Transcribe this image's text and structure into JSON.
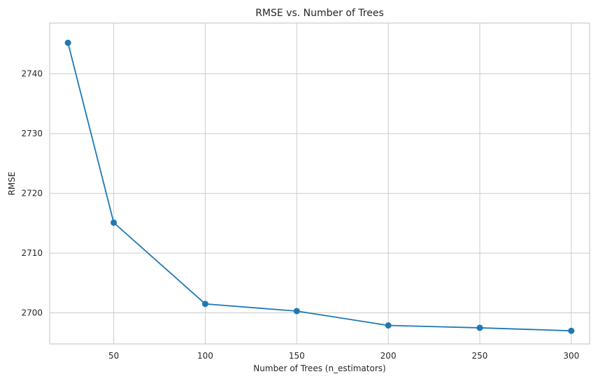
{
  "chart_data": {
    "type": "line",
    "title": "RMSE vs. Number of Trees",
    "xlabel": "Number of Trees (n_estimators)",
    "ylabel": "RMSE",
    "xlim": [
      15,
      310
    ],
    "ylim": [
      2694.8,
      2748.5
    ],
    "xticks": [
      50,
      100,
      150,
      200,
      250,
      300
    ],
    "yticks": [
      2700,
      2710,
      2720,
      2730,
      2740
    ],
    "grid": true,
    "series": [
      {
        "x": [
          25,
          50,
          100,
          150,
          200,
          250,
          300
        ],
        "y": [
          2745.2,
          2715.1,
          2701.5,
          2700.3,
          2697.9,
          2697.5,
          2697.0
        ],
        "color": "#1f77b4",
        "marker": "circle"
      }
    ]
  }
}
